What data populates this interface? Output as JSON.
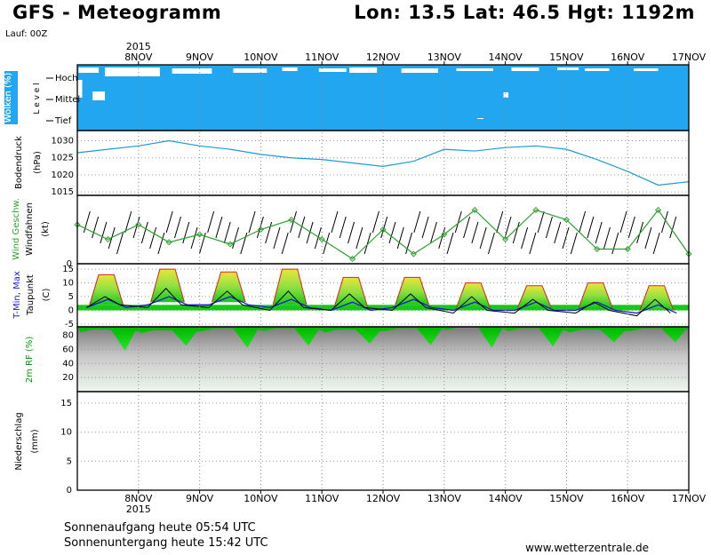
{
  "header": {
    "title": "GFS - Meteogramm",
    "location": "Lon: 13.5  Lat: 46.5  Hgt: 1192m",
    "run": "Lauf: 00Z"
  },
  "footer": {
    "sunrise": "Sonnenaufgang heute 05:54 UTC",
    "sunset": "Sonnenuntergang heute 15:42 UTC",
    "url": "www.wetterzentrale.de"
  },
  "colors": {
    "cloud_sky": "#22a6f0",
    "pressure_line": "#1e9ad9",
    "wind_speed": "#2ca02c",
    "tmax": "#e0201a",
    "tmin": "#1a1ad6",
    "rh_fill": "#00c800",
    "temp_hot": "#e6e63c",
    "temp_mild": "#90e040"
  },
  "chart_data": [
    {
      "panel": "clouds",
      "type": "heatmap",
      "ylabel": "Wolken (%)",
      "ylabel2": "L e v e l",
      "levels": [
        "Hoch",
        "Mittel",
        "Tief"
      ],
      "x_ticks": [
        "8NOV",
        "9NOV",
        "10NOV",
        "11NOV",
        "12NOV",
        "13NOV",
        "14NOV",
        "15NOV",
        "16NOV",
        "17NOV"
      ],
      "year": "2015",
      "note": "near-complete cloud cover at all levels with small breaks in high clouds"
    },
    {
      "panel": "pressure",
      "type": "line",
      "ylabel": "Bodendruck",
      "unit": "(hPa)",
      "ylim": [
        1014,
        1033
      ],
      "y_ticks": [
        1015,
        1020,
        1025,
        1030
      ],
      "x_ticks": [
        "8NOV",
        "9NOV",
        "10NOV",
        "11NOV",
        "12NOV",
        "13NOV",
        "14NOV",
        "15NOV",
        "16NOV",
        "17NOV"
      ],
      "x_days": [
        7.0,
        7.5,
        8.0,
        8.5,
        9.0,
        9.5,
        10.0,
        10.5,
        11.0,
        11.5,
        12.0,
        12.5,
        13.0,
        13.5,
        14.0,
        14.5,
        15.0,
        15.5,
        16.0,
        16.5,
        17.0
      ],
      "values": [
        1026.5,
        1027.5,
        1028.5,
        1030,
        1028.5,
        1027.5,
        1026,
        1025,
        1024.5,
        1023.5,
        1022.5,
        1024,
        1027.5,
        1027,
        1028,
        1028.5,
        1027.5,
        1024.5,
        1021,
        1017,
        1018
      ]
    },
    {
      "panel": "wind",
      "type": "line",
      "ylabel": "Wind Geschw.",
      "ylabel2": "Windfahnen",
      "unit": "(kt)",
      "ylim": [
        0,
        70
      ],
      "y_ticks": [
        0
      ],
      "x_ticks": [
        "8NOV",
        "9NOV",
        "10NOV",
        "11NOV",
        "12NOV",
        "13NOV",
        "14NOV",
        "15NOV",
        "16NOV",
        "17NOV"
      ],
      "x_days": [
        7.0,
        7.5,
        8.0,
        8.5,
        9.0,
        9.5,
        10.0,
        10.5,
        11.0,
        11.5,
        12.0,
        12.5,
        13.0,
        13.5,
        14.0,
        14.5,
        15.0,
        15.5,
        16.0,
        16.5,
        17.0
      ],
      "values": [
        40,
        25,
        40,
        22,
        30,
        20,
        35,
        45,
        25,
        5,
        35,
        10,
        30,
        55,
        25,
        55,
        45,
        15,
        15,
        55,
        10
      ]
    },
    {
      "panel": "temperature",
      "type": "area",
      "ylabel": "T-Min, Max",
      "ylabel2": "Taupunkt",
      "unit": "(C)",
      "ylim": [
        -6,
        17
      ],
      "y_ticks": [
        -5,
        0,
        5,
        10,
        15
      ],
      "x_ticks": [
        "8NOV",
        "9NOV",
        "10NOV",
        "11NOV",
        "12NOV",
        "13NOV",
        "14NOV",
        "15NOV",
        "16NOV",
        "17NOV"
      ],
      "days": [
        7,
        8,
        9,
        10,
        11,
        12,
        13,
        14,
        15,
        16
      ],
      "tmax": [
        13,
        15,
        14,
        15,
        12,
        12,
        10,
        9,
        10,
        9
      ],
      "tmin": [
        1,
        2,
        2,
        1,
        0,
        1,
        0,
        0,
        0,
        -1
      ],
      "dewpoint_peak": [
        5,
        8,
        7,
        7,
        6,
        6,
        5,
        4,
        3,
        4
      ],
      "dewpoint_base": [
        0,
        0,
        0,
        -1,
        -1,
        -1,
        -2,
        -2,
        -2,
        -3
      ]
    },
    {
      "panel": "humidity",
      "type": "area",
      "ylabel": "2m RF (%)",
      "ylim": [
        0,
        92
      ],
      "y_ticks": [
        20,
        40,
        60,
        80
      ],
      "x_ticks": [
        "8NOV",
        "9NOV",
        "10NOV",
        "11NOV",
        "12NOV",
        "13NOV",
        "14NOV",
        "15NOV",
        "16NOV",
        "17NOV"
      ],
      "days": [
        7,
        8,
        9,
        10,
        11,
        12,
        13,
        14,
        15,
        16
      ],
      "rh_max": [
        88,
        87,
        90,
        90,
        88,
        90,
        92,
        90,
        88,
        90
      ],
      "rh_min": [
        58,
        65,
        62,
        65,
        68,
        66,
        62,
        64,
        70,
        70
      ]
    },
    {
      "panel": "precipitation",
      "type": "bar",
      "ylabel": "Niederschlag",
      "unit": "(mm)",
      "ylim": [
        0,
        17
      ],
      "y_ticks": [
        0,
        5,
        10,
        15
      ],
      "x_ticks": [
        "8NOV",
        "9NOV",
        "10NOV",
        "11NOV",
        "12NOV",
        "13NOV",
        "14NOV",
        "15NOV",
        "16NOV",
        "17NOV"
      ],
      "year": "2015",
      "values": []
    }
  ]
}
